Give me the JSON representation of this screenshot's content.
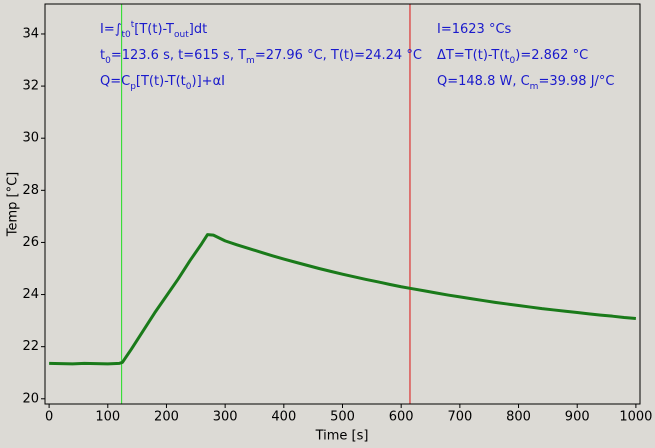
{
  "chart_data": {
    "type": "line",
    "x_label": "Time [s]",
    "y_label": "Temp [°C]",
    "xlim": [
      -7,
      1007
    ],
    "ylim": [
      19.8,
      35.15
    ],
    "xticks": [
      0,
      100,
      200,
      300,
      400,
      500,
      600,
      700,
      800,
      900,
      1000
    ],
    "yticks": [
      20,
      22,
      24,
      26,
      28,
      30,
      32,
      34
    ],
    "x": [
      0,
      20,
      40,
      60,
      80,
      100,
      120,
      125,
      140,
      160,
      180,
      200,
      220,
      240,
      260,
      270,
      280,
      300,
      320,
      340,
      360,
      380,
      400,
      420,
      440,
      460,
      480,
      500,
      520,
      540,
      560,
      580,
      600,
      615,
      620,
      640,
      660,
      680,
      700,
      720,
      740,
      760,
      780,
      800,
      820,
      840,
      860,
      880,
      900,
      920,
      940,
      960,
      980,
      1000
    ],
    "series": [
      {
        "color": "#1a7a1a",
        "values": [
          21.36,
          21.35,
          21.34,
          21.36,
          21.35,
          21.34,
          21.36,
          21.4,
          21.9,
          22.6,
          23.3,
          23.95,
          24.6,
          25.3,
          25.95,
          26.3,
          26.28,
          26.06,
          25.91,
          25.77,
          25.63,
          25.49,
          25.36,
          25.24,
          25.12,
          25.0,
          24.89,
          24.78,
          24.68,
          24.58,
          24.49,
          24.39,
          24.3,
          24.24,
          24.22,
          24.14,
          24.06,
          23.98,
          23.91,
          23.84,
          23.77,
          23.7,
          23.64,
          23.58,
          23.52,
          23.46,
          23.41,
          23.36,
          23.31,
          23.26,
          23.21,
          23.17,
          23.12,
          23.08
        ]
      }
    ],
    "markers": [
      {
        "x": 123.6,
        "color": "#22dd22"
      },
      {
        "x": 615,
        "color": "#dd1111"
      }
    ],
    "annotations": [
      [
        {
          "text": "I=∫"
        },
        {
          "text": "t0",
          "shift": "sub"
        },
        {
          "text": "t",
          "shift": "sup"
        },
        {
          "text": "[T(t)-T"
        },
        {
          "text": "out",
          "shift": "sub"
        },
        {
          "text": "]dt"
        }
      ],
      [
        {
          "text": "t"
        },
        {
          "text": "0",
          "shift": "sub"
        },
        {
          "text": "=123.6 s,   t=615 s,   T"
        },
        {
          "text": "m",
          "shift": "sub"
        },
        {
          "text": "=27.96 °C,  T(t)=24.24 °C"
        }
      ],
      [
        {
          "text": "Q=C"
        },
        {
          "text": "p",
          "shift": "sub"
        },
        {
          "text": "[T(t)-T(t"
        },
        {
          "text": "0",
          "shift": "sub"
        },
        {
          "text": ")]+αI"
        }
      ],
      [
        {
          "text": "I=1623 °Cs"
        }
      ],
      [
        {
          "text": "ΔT=T(t)-T(t"
        },
        {
          "text": "0",
          "shift": "sub"
        },
        {
          "text": ")=2.862 °C"
        }
      ],
      [
        {
          "text": "Q=148.8 W,   C"
        },
        {
          "text": "m",
          "shift": "sub"
        },
        {
          "text": "=39.98 J/°C"
        }
      ]
    ]
  }
}
